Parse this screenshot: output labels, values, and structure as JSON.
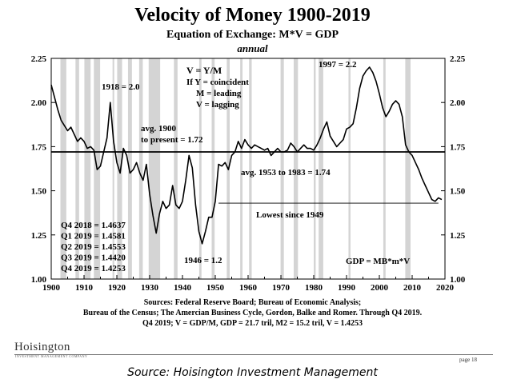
{
  "chart_data": {
    "type": "line",
    "title": "Velocity of Money 1900-2019",
    "subtitle": "Equation of Exchange: M*V = GDP",
    "subtitle2": "annual",
    "xlim": [
      1900,
      2020
    ],
    "ylim": [
      1.0,
      2.25
    ],
    "xticks": [
      "1900",
      "1910",
      "1920",
      "1930",
      "1940",
      "1950",
      "1960",
      "1970",
      "1980",
      "1990",
      "2000",
      "2010",
      "2020"
    ],
    "yticks": [
      "1.00",
      "1.25",
      "1.50",
      "1.75",
      "2.00",
      "2.25"
    ],
    "series": [
      {
        "values": [
          [
            1900,
            2.1
          ],
          [
            1901,
            2.03
          ],
          [
            1902,
            1.96
          ],
          [
            1903,
            1.9
          ],
          [
            1904,
            1.87
          ],
          [
            1905,
            1.84
          ],
          [
            1906,
            1.86
          ],
          [
            1907,
            1.82
          ],
          [
            1908,
            1.78
          ],
          [
            1909,
            1.8
          ],
          [
            1910,
            1.78
          ],
          [
            1911,
            1.74
          ],
          [
            1912,
            1.75
          ],
          [
            1913,
            1.73
          ],
          [
            1914,
            1.62
          ],
          [
            1915,
            1.64
          ],
          [
            1916,
            1.72
          ],
          [
            1917,
            1.8
          ],
          [
            1918,
            2.0
          ],
          [
            1919,
            1.78
          ],
          [
            1920,
            1.66
          ],
          [
            1921,
            1.6
          ],
          [
            1922,
            1.74
          ],
          [
            1923,
            1.7
          ],
          [
            1924,
            1.6
          ],
          [
            1925,
            1.62
          ],
          [
            1926,
            1.66
          ],
          [
            1927,
            1.6
          ],
          [
            1928,
            1.56
          ],
          [
            1929,
            1.65
          ],
          [
            1930,
            1.48
          ],
          [
            1931,
            1.36
          ],
          [
            1932,
            1.26
          ],
          [
            1933,
            1.37
          ],
          [
            1934,
            1.44
          ],
          [
            1935,
            1.4
          ],
          [
            1936,
            1.42
          ],
          [
            1937,
            1.53
          ],
          [
            1938,
            1.42
          ],
          [
            1939,
            1.4
          ],
          [
            1940,
            1.44
          ],
          [
            1941,
            1.56
          ],
          [
            1942,
            1.7
          ],
          [
            1943,
            1.63
          ],
          [
            1944,
            1.42
          ],
          [
            1945,
            1.27
          ],
          [
            1946,
            1.2
          ],
          [
            1947,
            1.27
          ],
          [
            1948,
            1.35
          ],
          [
            1949,
            1.35
          ],
          [
            1950,
            1.44
          ],
          [
            1951,
            1.65
          ],
          [
            1952,
            1.64
          ],
          [
            1953,
            1.66
          ],
          [
            1954,
            1.62
          ],
          [
            1955,
            1.7
          ],
          [
            1956,
            1.72
          ],
          [
            1957,
            1.78
          ],
          [
            1958,
            1.74
          ],
          [
            1959,
            1.79
          ],
          [
            1960,
            1.76
          ],
          [
            1961,
            1.74
          ],
          [
            1962,
            1.76
          ],
          [
            1963,
            1.75
          ],
          [
            1964,
            1.74
          ],
          [
            1965,
            1.73
          ],
          [
            1966,
            1.74
          ],
          [
            1967,
            1.7
          ],
          [
            1968,
            1.72
          ],
          [
            1969,
            1.74
          ],
          [
            1970,
            1.72
          ],
          [
            1971,
            1.72
          ],
          [
            1972,
            1.73
          ],
          [
            1973,
            1.77
          ],
          [
            1974,
            1.75
          ],
          [
            1975,
            1.72
          ],
          [
            1976,
            1.74
          ],
          [
            1977,
            1.76
          ],
          [
            1978,
            1.74
          ],
          [
            1979,
            1.74
          ],
          [
            1980,
            1.73
          ],
          [
            1981,
            1.76
          ],
          [
            1982,
            1.8
          ],
          [
            1983,
            1.85
          ],
          [
            1984,
            1.89
          ],
          [
            1985,
            1.81
          ],
          [
            1986,
            1.78
          ],
          [
            1987,
            1.75
          ],
          [
            1988,
            1.77
          ],
          [
            1989,
            1.79
          ],
          [
            1990,
            1.85
          ],
          [
            1991,
            1.86
          ],
          [
            1992,
            1.88
          ],
          [
            1993,
            1.97
          ],
          [
            1994,
            2.08
          ],
          [
            1995,
            2.15
          ],
          [
            1996,
            2.18
          ],
          [
            1997,
            2.2
          ],
          [
            1998,
            2.17
          ],
          [
            1999,
            2.12
          ],
          [
            2000,
            2.05
          ],
          [
            2001,
            1.97
          ],
          [
            2002,
            1.92
          ],
          [
            2003,
            1.95
          ],
          [
            2004,
            1.99
          ],
          [
            2005,
            2.01
          ],
          [
            2006,
            1.99
          ],
          [
            2007,
            1.92
          ],
          [
            2008,
            1.76
          ],
          [
            2009,
            1.72
          ],
          [
            2010,
            1.7
          ],
          [
            2011,
            1.66
          ],
          [
            2012,
            1.62
          ],
          [
            2013,
            1.57
          ],
          [
            2014,
            1.53
          ],
          [
            2015,
            1.49
          ],
          [
            2016,
            1.45
          ],
          [
            2017,
            1.44
          ],
          [
            2018,
            1.46
          ],
          [
            2019,
            1.45
          ]
        ]
      }
    ],
    "recessions": [
      [
        1902.8,
        1904.6
      ],
      [
        1907.4,
        1908.5
      ],
      [
        1910.1,
        1912.0
      ],
      [
        1913.0,
        1914.9
      ],
      [
        1918.7,
        1919.2
      ],
      [
        1920.1,
        1921.6
      ],
      [
        1923.4,
        1924.6
      ],
      [
        1926.8,
        1927.9
      ],
      [
        1929.7,
        1933.2
      ],
      [
        1937.4,
        1938.5
      ],
      [
        1945.1,
        1945.8
      ],
      [
        1948.9,
        1949.8
      ],
      [
        1953.5,
        1954.4
      ],
      [
        1957.6,
        1958.3
      ],
      [
        1960.3,
        1961.1
      ],
      [
        1969.9,
        1970.9
      ],
      [
        1973.9,
        1975.2
      ],
      [
        1980.0,
        1980.6
      ],
      [
        1981.5,
        1982.9
      ],
      [
        1990.6,
        1991.2
      ],
      [
        2001.2,
        2001.9
      ],
      [
        2007.9,
        2009.5
      ]
    ],
    "reference_lines": [
      {
        "y": 1.72,
        "x0": 1900,
        "x1": 2020
      },
      {
        "y": 1.43,
        "x0": 1951,
        "x1": 2018
      }
    ],
    "annotations": {
      "formula": [
        "V = Y/M",
        "If Y = coincident",
        "M = leading",
        "V = lagging"
      ],
      "peak1918": "1918 = 2.0",
      "peak1997": "1997 = 2.2",
      "avg1900": [
        "avg. 1900",
        "to present = 1.72"
      ],
      "avg1953": "avg. 1953 to 1983 = 1.74",
      "lowest": "Lowest since 1949",
      "low1946": "1946 = 1.2",
      "gdp": "GDP = MB*m*V",
      "quarters": [
        "Q4 2018 = 1.4637",
        "Q1 2019 = 1.4581",
        "Q2 2019 = 1.4553",
        "Q3 2019 = 1.4420",
        "Q4 2019 = 1.4253"
      ]
    }
  },
  "sources": [
    "Sources: Federal Reserve Board; Bureau of Economic Analysis;",
    "Bureau of the Census; The Amercian Business Cycle, Gordon, Balke and Romer. Through Q4 2019.",
    "Q4 2019; V = GDP/M, GDP = 21.7 tril, M2 = 15.2 tril, V = 1.4253"
  ],
  "logo": "Hoisington",
  "logo_sub": "INVESTMENT MANAGEMENT COMPANY",
  "page": "page 18",
  "source_caption": "Source: Hoisington Investment Management",
  "colors": {
    "recession": "#d4d4d4",
    "line": "#000000"
  }
}
